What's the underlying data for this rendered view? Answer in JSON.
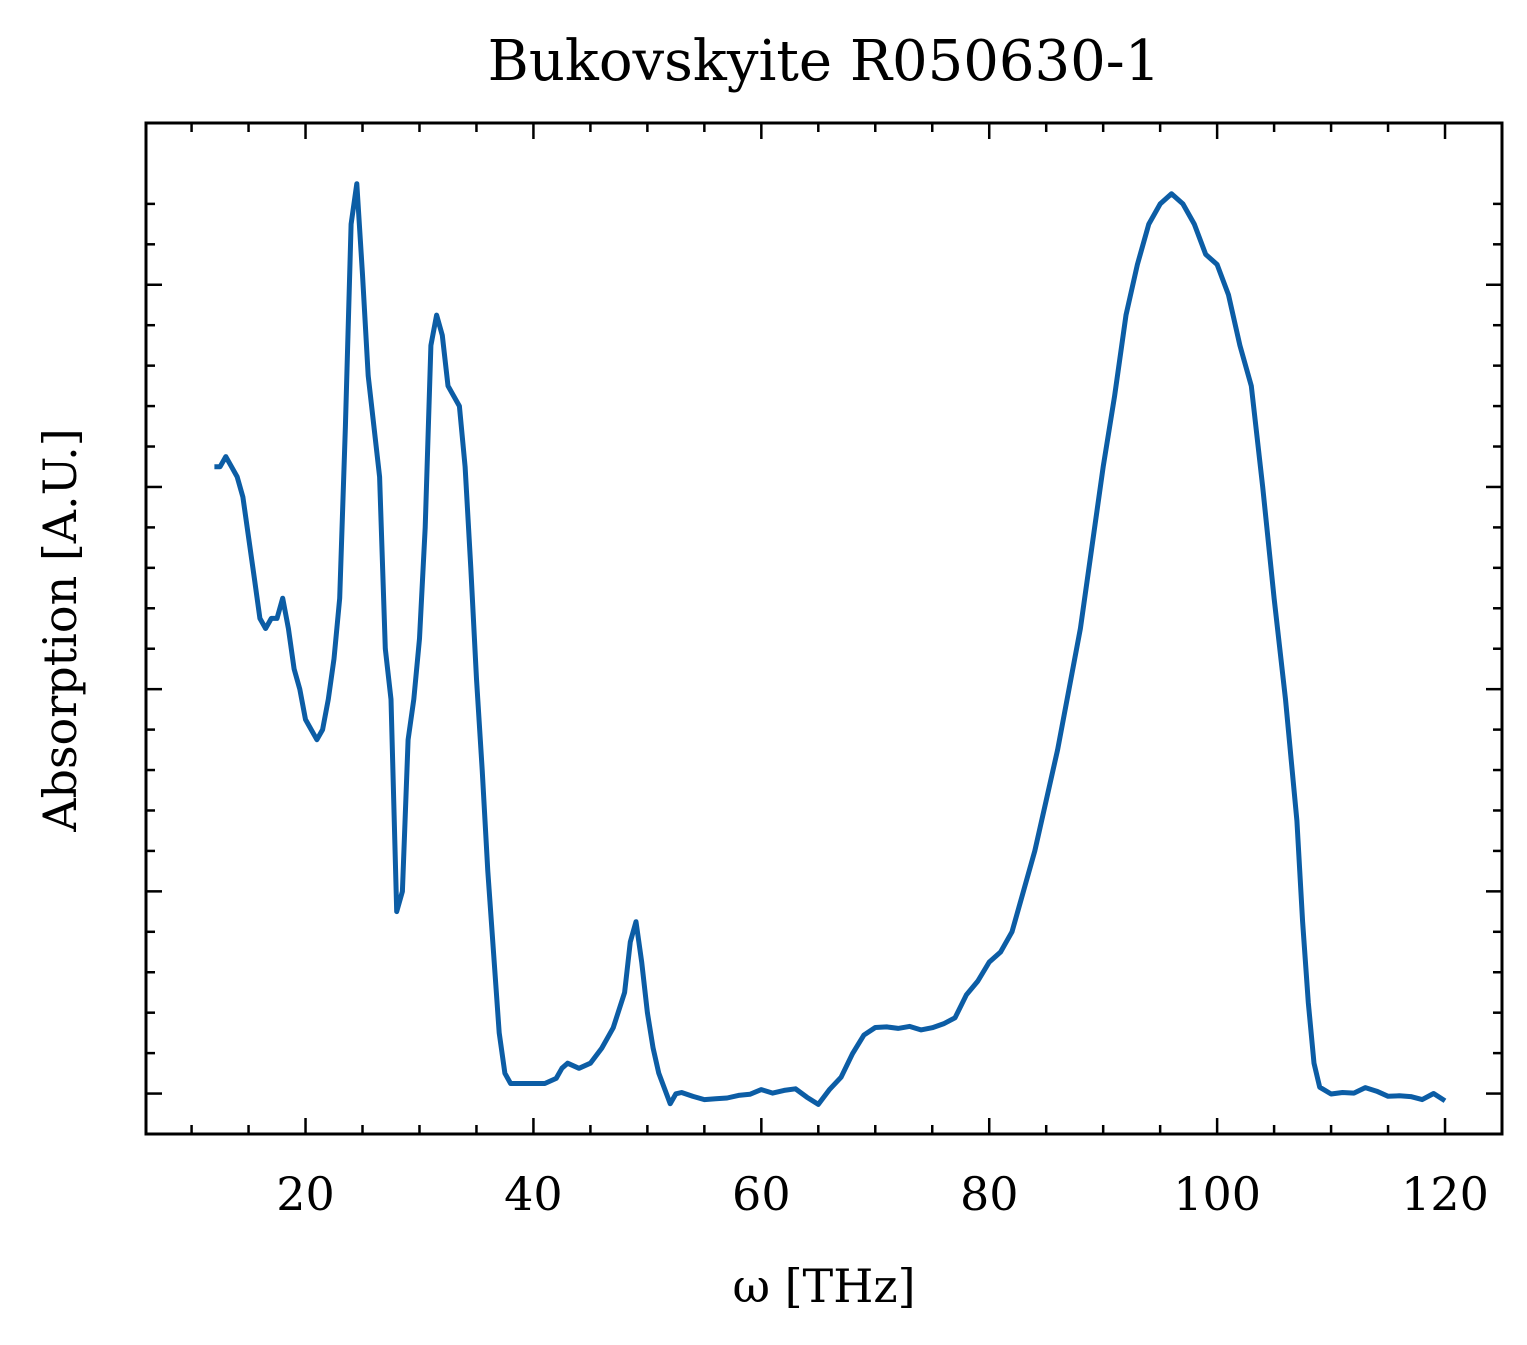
{
  "chart_data": {
    "type": "line",
    "title": "Bukovskyite R050630-1",
    "xlabel": "ω [THz]",
    "ylabel": "Absorption [A.U.]",
    "xlim": [
      6,
      125
    ],
    "ylim": [
      0.0,
      1.0
    ],
    "x_ticks": [
      20,
      40,
      60,
      80,
      100,
      120
    ],
    "x_tick_labels": [
      "20",
      "40",
      "60",
      "80",
      "100",
      "120"
    ],
    "y_tick_labels_shown": false,
    "grid": false,
    "legend": "none",
    "series": [
      {
        "color": "#0c5da5",
        "points": [
          [
            12.0,
            0.66
          ],
          [
            12.5,
            0.66
          ],
          [
            13.0,
            0.67
          ],
          [
            13.5,
            0.66
          ],
          [
            14.0,
            0.65
          ],
          [
            14.5,
            0.63
          ],
          [
            15.0,
            0.59
          ],
          [
            15.5,
            0.55
          ],
          [
            16.0,
            0.51
          ],
          [
            16.5,
            0.5
          ],
          [
            17.0,
            0.51
          ],
          [
            17.5,
            0.51
          ],
          [
            18.0,
            0.53
          ],
          [
            18.5,
            0.5
          ],
          [
            19.0,
            0.46
          ],
          [
            19.5,
            0.44
          ],
          [
            20.0,
            0.41
          ],
          [
            20.5,
            0.4
          ],
          [
            21.0,
            0.39
          ],
          [
            21.5,
            0.4
          ],
          [
            22.0,
            0.43
          ],
          [
            22.5,
            0.47
          ],
          [
            23.0,
            0.53
          ],
          [
            23.5,
            0.7
          ],
          [
            24.0,
            0.9
          ],
          [
            24.5,
            0.94
          ],
          [
            25.0,
            0.85
          ],
          [
            25.5,
            0.75
          ],
          [
            26.0,
            0.7
          ],
          [
            26.5,
            0.65
          ],
          [
            27.0,
            0.48
          ],
          [
            27.5,
            0.43
          ],
          [
            28.0,
            0.22
          ],
          [
            28.5,
            0.24
          ],
          [
            29.0,
            0.39
          ],
          [
            29.5,
            0.43
          ],
          [
            30.0,
            0.49
          ],
          [
            30.5,
            0.6
          ],
          [
            31.0,
            0.78
          ],
          [
            31.5,
            0.81
          ],
          [
            32.0,
            0.79
          ],
          [
            32.5,
            0.74
          ],
          [
            33.0,
            0.73
          ],
          [
            33.5,
            0.72
          ],
          [
            34.0,
            0.66
          ],
          [
            34.5,
            0.56
          ],
          [
            35.0,
            0.45
          ],
          [
            35.5,
            0.36
          ],
          [
            36.0,
            0.26
          ],
          [
            36.5,
            0.18
          ],
          [
            37.0,
            0.1
          ],
          [
            37.5,
            0.06
          ],
          [
            38.0,
            0.05
          ],
          [
            39.0,
            0.05
          ],
          [
            40.0,
            0.05
          ],
          [
            41.0,
            0.05
          ],
          [
            42.0,
            0.055
          ],
          [
            42.5,
            0.065
          ],
          [
            43.0,
            0.07
          ],
          [
            44.0,
            0.065
          ],
          [
            45.0,
            0.07
          ],
          [
            46.0,
            0.085
          ],
          [
            47.0,
            0.105
          ],
          [
            48.0,
            0.14
          ],
          [
            48.5,
            0.19
          ],
          [
            49.0,
            0.21
          ],
          [
            49.5,
            0.17
          ],
          [
            50.0,
            0.12
          ],
          [
            50.5,
            0.085
          ],
          [
            51.0,
            0.06
          ],
          [
            51.5,
            0.045
          ],
          [
            52.0,
            0.03
          ],
          [
            52.5,
            0.04
          ],
          [
            53.0,
            0.043
          ],
          [
            54.0,
            0.042
          ],
          [
            55.0,
            0.04
          ],
          [
            56.0,
            0.04
          ],
          [
            57.0,
            0.038
          ],
          [
            58.0,
            0.037
          ],
          [
            59.0,
            0.035
          ],
          [
            60.0,
            0.038
          ],
          [
            61.0,
            0.035
          ],
          [
            62.0,
            0.04
          ],
          [
            63.0,
            0.045
          ],
          [
            64.0,
            0.04
          ],
          [
            65.0,
            0.035
          ],
          [
            66.0,
            0.05
          ],
          [
            67.0,
            0.06
          ],
          [
            68.0,
            0.08
          ],
          [
            69.0,
            0.095
          ],
          [
            70.0,
            0.1
          ],
          [
            71.0,
            0.1
          ],
          [
            72.0,
            0.1
          ],
          [
            73.0,
            0.105
          ],
          [
            74.0,
            0.105
          ],
          [
            75.0,
            0.11
          ],
          [
            76.0,
            0.115
          ],
          [
            77.0,
            0.12
          ],
          [
            78.0,
            0.14
          ],
          [
            79.0,
            0.15
          ],
          [
            80.0,
            0.17
          ],
          [
            81.0,
            0.18
          ],
          [
            82.0,
            0.2
          ],
          [
            83.0,
            0.24
          ],
          [
            84.0,
            0.28
          ],
          [
            85.0,
            0.33
          ],
          [
            86.0,
            0.38
          ],
          [
            87.0,
            0.44
          ],
          [
            88.0,
            0.5
          ],
          [
            89.0,
            0.58
          ],
          [
            90.0,
            0.66
          ],
          [
            91.0,
            0.73
          ],
          [
            92.0,
            0.81
          ],
          [
            93.0,
            0.86
          ],
          [
            94.0,
            0.9
          ],
          [
            95.0,
            0.92
          ],
          [
            96.0,
            0.93
          ],
          [
            97.0,
            0.92
          ],
          [
            98.0,
            0.9
          ],
          [
            99.0,
            0.87
          ],
          [
            100.0,
            0.86
          ],
          [
            101.0,
            0.83
          ],
          [
            102.0,
            0.78
          ],
          [
            103.0,
            0.74
          ],
          [
            104.0,
            0.64
          ],
          [
            105.0,
            0.53
          ],
          [
            106.0,
            0.43
          ],
          [
            107.0,
            0.31
          ],
          [
            107.5,
            0.21
          ],
          [
            108.0,
            0.13
          ],
          [
            108.5,
            0.075
          ],
          [
            109.0,
            0.05
          ],
          [
            110.0,
            0.04
          ],
          [
            111.0,
            0.038
          ],
          [
            112.0,
            0.035
          ],
          [
            113.0,
            0.04
          ],
          [
            114.0,
            0.038
          ],
          [
            115.0,
            0.036
          ],
          [
            116.0,
            0.04
          ],
          [
            117.0,
            0.042
          ],
          [
            118.0,
            0.04
          ],
          [
            119.0,
            0.045
          ],
          [
            120.0,
            0.035
          ]
        ]
      }
    ]
  }
}
